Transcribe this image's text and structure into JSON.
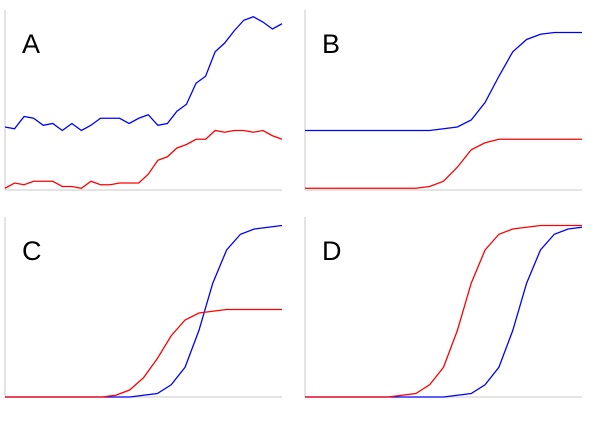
{
  "chart_data": [
    {
      "type": "line",
      "title": "A",
      "ylim": [
        0,
        1
      ],
      "series": [
        {
          "color": "#0000ff",
          "values": [
            0.36,
            0.35,
            0.42,
            0.41,
            0.37,
            0.38,
            0.34,
            0.38,
            0.34,
            0.37,
            0.41,
            0.41,
            0.41,
            0.38,
            0.41,
            0.43,
            0.37,
            0.38,
            0.45,
            0.49,
            0.61,
            0.65,
            0.79,
            0.84,
            0.91,
            0.97,
            0.99,
            0.96,
            0.92,
            0.95
          ]
        },
        {
          "color": "#ff0000",
          "values": [
            0.01,
            0.04,
            0.03,
            0.05,
            0.05,
            0.05,
            0.02,
            0.02,
            0.01,
            0.05,
            0.03,
            0.03,
            0.04,
            0.04,
            0.04,
            0.09,
            0.17,
            0.19,
            0.24,
            0.26,
            0.29,
            0.29,
            0.34,
            0.33,
            0.34,
            0.34,
            0.33,
            0.34,
            0.31,
            0.29
          ]
        }
      ]
    },
    {
      "type": "line",
      "title": "B",
      "ylim": [
        0,
        1
      ],
      "series": [
        {
          "color": "#0000ff",
          "values": [
            0.34,
            0.34,
            0.34,
            0.34,
            0.34,
            0.34,
            0.34,
            0.34,
            0.34,
            0.34,
            0.35,
            0.36,
            0.4,
            0.5,
            0.65,
            0.79,
            0.86,
            0.89,
            0.9,
            0.9,
            0.9
          ]
        },
        {
          "color": "#ff0000",
          "values": [
            0.01,
            0.01,
            0.01,
            0.01,
            0.01,
            0.01,
            0.01,
            0.01,
            0.01,
            0.02,
            0.05,
            0.13,
            0.23,
            0.27,
            0.29,
            0.29,
            0.29,
            0.29,
            0.29,
            0.29,
            0.29
          ]
        }
      ]
    },
    {
      "type": "line",
      "title": "C",
      "ylim": [
        0,
        1
      ],
      "series": [
        {
          "color": "#0000ff",
          "values": [
            0,
            0,
            0,
            0,
            0,
            0,
            0,
            0,
            0,
            0,
            0.01,
            0.02,
            0.07,
            0.17,
            0.38,
            0.65,
            0.84,
            0.93,
            0.96,
            0.97,
            0.98
          ]
        },
        {
          "color": "#ff0000",
          "values": [
            0,
            0,
            0,
            0,
            0,
            0,
            0,
            0,
            0.01,
            0.04,
            0.11,
            0.22,
            0.35,
            0.44,
            0.48,
            0.49,
            0.5,
            0.5,
            0.5,
            0.5,
            0.5
          ]
        }
      ]
    },
    {
      "type": "line",
      "title": "D",
      "ylim": [
        0,
        1
      ],
      "series": [
        {
          "color": "#0000ff",
          "values": [
            0,
            0,
            0,
            0,
            0,
            0,
            0,
            0,
            0,
            0,
            0,
            0.01,
            0.02,
            0.07,
            0.17,
            0.38,
            0.65,
            0.84,
            0.93,
            0.96,
            0.97
          ]
        },
        {
          "color": "#ff0000",
          "values": [
            0,
            0,
            0,
            0,
            0,
            0,
            0,
            0.01,
            0.02,
            0.07,
            0.17,
            0.38,
            0.65,
            0.84,
            0.93,
            0.96,
            0.97,
            0.98,
            0.98,
            0.98,
            0.98
          ]
        }
      ]
    }
  ]
}
